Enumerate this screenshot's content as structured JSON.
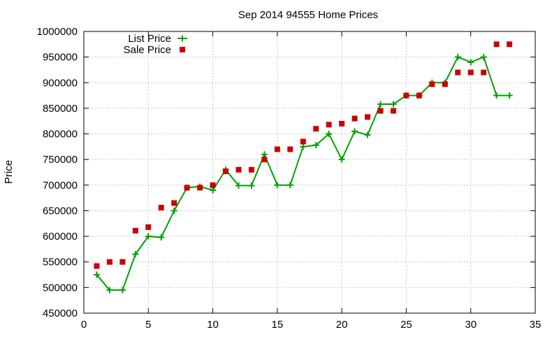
{
  "chart_data": {
    "type": "line",
    "title": "Sep 2014 94555 Home Prices",
    "xlabel": "",
    "ylabel": "Price",
    "xlim": [
      0,
      35
    ],
    "ylim": [
      450000,
      1000000
    ],
    "xticks": [
      0,
      5,
      10,
      15,
      20,
      25,
      30,
      35
    ],
    "yticks": [
      450000,
      500000,
      550000,
      600000,
      650000,
      700000,
      750000,
      800000,
      850000,
      900000,
      950000,
      1000000
    ],
    "grid": true,
    "legend_position": "top-left",
    "series": [
      {
        "name": "List Price",
        "style": "line+plus-markers",
        "color": "#00a000",
        "x": [
          1,
          2,
          3,
          4,
          5,
          6,
          7,
          8,
          9,
          10,
          11,
          12,
          13,
          14,
          15,
          16,
          17,
          18,
          19,
          20,
          21,
          22,
          23,
          24,
          25,
          26,
          27,
          28,
          29,
          30,
          31,
          32,
          33
        ],
        "values": [
          525000,
          495000,
          495000,
          565000,
          600000,
          598000,
          650000,
          695000,
          697000,
          690000,
          730000,
          699000,
          699000,
          760000,
          700000,
          700000,
          775000,
          778000,
          800000,
          750000,
          805000,
          798000,
          858000,
          858000,
          875000,
          875000,
          900000,
          900000,
          950000,
          940000,
          950000,
          875000,
          875000
        ]
      },
      {
        "name": "Sale Price",
        "style": "square-markers",
        "color": "#cc0000",
        "x": [
          1,
          2,
          3,
          4,
          5,
          6,
          7,
          8,
          9,
          10,
          11,
          12,
          13,
          14,
          15,
          16,
          17,
          18,
          19,
          20,
          21,
          22,
          23,
          24,
          25,
          26,
          27,
          28,
          29,
          30,
          31,
          32,
          33
        ],
        "values": [
          542000,
          550000,
          550000,
          611000,
          618000,
          656000,
          665000,
          695000,
          695000,
          700000,
          727000,
          730000,
          730000,
          750000,
          770000,
          770000,
          785000,
          810000,
          818000,
          820000,
          830000,
          833000,
          845000,
          845000,
          875000,
          875000,
          897000,
          897000,
          920000,
          920000,
          920000,
          975000,
          975000
        ]
      }
    ]
  }
}
